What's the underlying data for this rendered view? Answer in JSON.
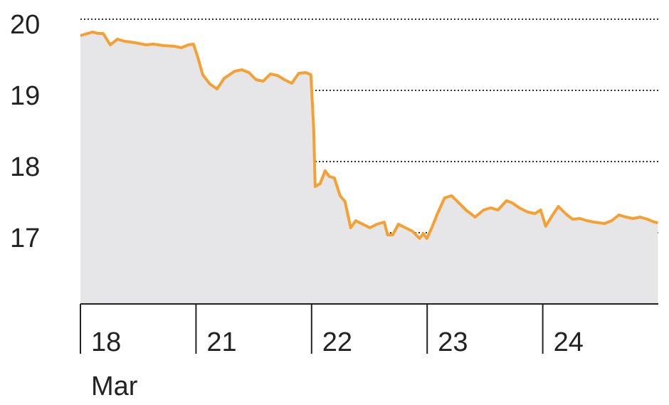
{
  "chart_data": {
    "type": "area",
    "x": [
      0,
      0.105,
      0.154,
      0.197,
      0.258,
      0.32,
      0.382,
      0.474,
      0.566,
      0.628,
      0.72,
      0.812,
      0.874,
      0.935,
      0.978,
      1.015,
      1.058,
      1.12,
      1.182,
      1.243,
      1.335,
      1.397,
      1.458,
      1.52,
      1.582,
      1.643,
      1.705,
      1.766,
      1.828,
      1.889,
      1.951,
      1.994,
      2.018,
      2.031,
      2.074,
      2.117,
      2.154,
      2.197,
      2.246,
      2.289,
      2.338,
      2.382,
      2.443,
      2.505,
      2.566,
      2.628,
      2.658,
      2.702,
      2.751,
      2.812,
      2.874,
      2.935,
      2.966,
      2.997,
      3.04,
      3.089,
      3.151,
      3.212,
      3.274,
      3.335,
      3.415,
      3.489,
      3.551,
      3.612,
      3.686,
      3.735,
      3.797,
      3.871,
      3.932,
      3.982,
      4.025,
      4.074,
      4.135,
      4.197,
      4.258,
      4.32,
      4.382,
      4.443,
      4.535,
      4.597,
      4.658,
      4.72,
      4.782,
      4.843,
      4.905,
      4.966,
      4.997
    ],
    "values": [
      19.77,
      19.82,
      19.8,
      19.8,
      19.64,
      19.72,
      19.69,
      19.67,
      19.64,
      19.65,
      19.63,
      19.62,
      19.6,
      19.64,
      19.65,
      19.47,
      19.22,
      19.09,
      19.02,
      19.17,
      19.27,
      19.29,
      19.25,
      19.15,
      19.13,
      19.23,
      19.21,
      19.15,
      19.1,
      19.24,
      19.25,
      19.22,
      18.47,
      17.65,
      17.69,
      17.87,
      17.79,
      17.77,
      17.52,
      17.44,
      17.07,
      17.17,
      17.12,
      17.07,
      17.12,
      17.15,
      16.97,
      16.97,
      17.12,
      17.07,
      17.02,
      16.92,
      16.99,
      16.92,
      17.07,
      17.27,
      17.49,
      17.52,
      17.42,
      17.32,
      17.22,
      17.32,
      17.35,
      17.32,
      17.45,
      17.42,
      17.35,
      17.29,
      17.27,
      17.32,
      17.09,
      17.22,
      17.37,
      17.27,
      17.19,
      17.2,
      17.17,
      17.15,
      17.13,
      17.17,
      17.25,
      17.22,
      17.2,
      17.22,
      17.19,
      17.15,
      17.14
    ],
    "color": "#f5a031",
    "fill": "#e6e6e8",
    "xlim": [
      0,
      5
    ],
    "xticks": [
      {
        "value": 0,
        "label": "18"
      },
      {
        "value": 1,
        "label": "21"
      },
      {
        "value": 2,
        "label": "22"
      },
      {
        "value": 3,
        "label": "23"
      },
      {
        "value": 4,
        "label": "24"
      }
    ],
    "x_sublabel": "Mar",
    "ylim": [
      16,
      20
    ],
    "yticks": [
      17,
      18,
      19,
      20
    ],
    "grid": true
  }
}
